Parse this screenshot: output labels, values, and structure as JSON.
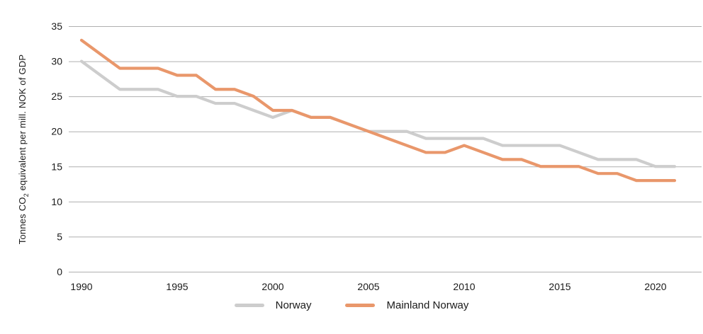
{
  "chart_data": {
    "type": "line",
    "ylabel": "Tonnes CO2 equivalent per mill. NOK of GDP",
    "ylabel_parts": {
      "pre": "Tonnes CO",
      "sub": "2",
      "post": " equivalent per mill. NOK of GDP"
    },
    "x": [
      1990,
      1991,
      1992,
      1993,
      1994,
      1995,
      1996,
      1997,
      1998,
      1999,
      2000,
      2001,
      2002,
      2003,
      2004,
      2005,
      2006,
      2007,
      2008,
      2009,
      2010,
      2011,
      2012,
      2013,
      2014,
      2015,
      2016,
      2017,
      2018,
      2019,
      2020,
      2021
    ],
    "series": [
      {
        "name": "Norway",
        "color": "#CDCDCD",
        "values": [
          30,
          28,
          26,
          26,
          26,
          25,
          25,
          24,
          24,
          23,
          22,
          23,
          22,
          22,
          21,
          20,
          20,
          20,
          19,
          19,
          19,
          19,
          18,
          18,
          18,
          18,
          17,
          16,
          16,
          16,
          15,
          15
        ]
      },
      {
        "name": "Mainland Norway",
        "color": "#E9976B",
        "values": [
          33,
          31,
          29,
          29,
          29,
          28,
          28,
          26,
          26,
          25,
          23,
          23,
          22,
          22,
          21,
          20,
          19,
          18,
          17,
          17,
          18,
          17,
          16,
          16,
          15,
          15,
          15,
          14,
          14,
          13,
          13,
          13
        ]
      }
    ],
    "ylim": [
      0,
      35
    ],
    "yticks": [
      0,
      5,
      10,
      15,
      20,
      25,
      30,
      35
    ],
    "xticks": [
      1990,
      1995,
      2000,
      2005,
      2010,
      2015,
      2020
    ],
    "grid": true,
    "legend_position": "bottom",
    "gridline_color": "#AFAFAF",
    "tick_label_color": "#1A1A1A"
  }
}
